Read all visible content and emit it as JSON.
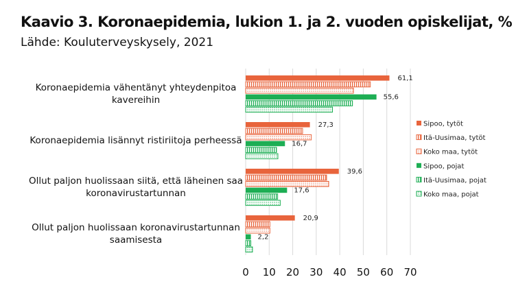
{
  "title": "Kaavio 3. Koronaepidemia, lukion 1. ja 2. vuoden opiskelijat, %",
  "subtitle": "Lähde: Kouluterveyskysely, 2021",
  "colors": {
    "orange": "#E8643C",
    "green": "#1DAE54",
    "grid": "#d9d9d9"
  },
  "chart_data": {
    "type": "bar",
    "orientation": "horizontal",
    "title": "Kaavio 3. Koronaepidemia, lukion 1. ja 2. vuoden opiskelijat, %",
    "subtitle": "Lähde: Kouluterveyskysely, 2021",
    "categories": [
      "Koronaepidemia vähentänyt yhteydenpitoa kavereihin",
      "Koronaepidemia lisännyt ristiriitoja perheessä",
      "Ollut paljon huolissaan siitä, että läheinen saa koronavirustartunnan",
      "Ollut paljon huolissaan koronavirustartunnan saamisesta"
    ],
    "xlim": [
      0,
      70
    ],
    "xticks": [
      0,
      10,
      20,
      30,
      40,
      50,
      60,
      70
    ],
    "grid": true,
    "legend_position": "right",
    "series": [
      {
        "name": "Sipoo, tytöt",
        "color": "#E8643C",
        "pattern": "solid",
        "values": [
          61.1,
          27.3,
          39.6,
          20.9
        ],
        "labeled": true
      },
      {
        "name": "Itä-Uusimaa, tytöt",
        "color": "#E8643C",
        "pattern": "vertical-stripes",
        "values": [
          53.0,
          24.2,
          34.4,
          10.3
        ],
        "labeled": false
      },
      {
        "name": "Koko maa, tytöt",
        "color": "#E8643C",
        "pattern": "dots",
        "values": [
          45.8,
          27.9,
          35.3,
          10.3
        ],
        "labeled": false
      },
      {
        "name": "Sipoo, pojat",
        "color": "#1DAE54",
        "pattern": "solid",
        "values": [
          55.6,
          16.7,
          17.6,
          2.2
        ],
        "labeled": true
      },
      {
        "name": "Itä-Uusimaa, pojat",
        "color": "#1DAE54",
        "pattern": "vertical-stripes",
        "values": [
          45.4,
          13.1,
          13.6,
          2.2
        ],
        "labeled": false
      },
      {
        "name": "Koko maa, pojat",
        "color": "#1DAE54",
        "pattern": "dots",
        "values": [
          36.9,
          13.7,
          14.7,
          2.9
        ],
        "labeled": false
      }
    ]
  }
}
